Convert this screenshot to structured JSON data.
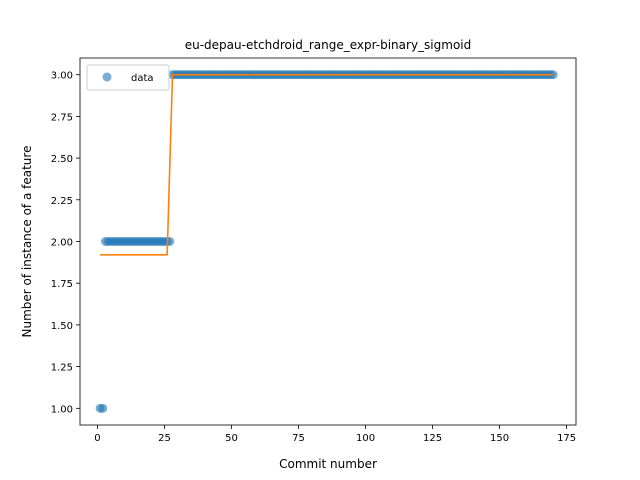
{
  "chart_data": {
    "type": "scatter",
    "title": "eu-depau-etchdroid_range_expr-binary_sigmoid",
    "xlabel": "Commit number",
    "ylabel": "Number of instance of a feature",
    "xlim": [
      -6.5,
      178.5
    ],
    "ylim": [
      0.9,
      3.1
    ],
    "xticks": [
      0,
      25,
      50,
      75,
      100,
      125,
      150,
      175
    ],
    "yticks": [
      1.0,
      1.25,
      1.5,
      1.75,
      2.0,
      2.25,
      2.5,
      2.75,
      3.0
    ],
    "ytick_labels": [
      "1.00",
      "1.25",
      "1.50",
      "1.75",
      "2.00",
      "2.25",
      "2.50",
      "2.75",
      "3.00"
    ],
    "legend": {
      "position": "top-left",
      "entries": [
        "data"
      ]
    },
    "colors": {
      "data": "#1f77b4",
      "fit": "#ff7f0e"
    },
    "series": [
      {
        "name": "data",
        "style": "markers",
        "segments": [
          {
            "x_start": 1,
            "x_end": 2,
            "y": 1.0
          },
          {
            "x_start": 3,
            "x_end": 27,
            "y": 2.0
          },
          {
            "x_start": 28,
            "x_end": 170,
            "y": 3.0
          }
        ]
      },
      {
        "style": "line",
        "points": [
          [
            1,
            1.92
          ],
          [
            26,
            1.92
          ],
          [
            28,
            3.0
          ],
          [
            170,
            3.0
          ]
        ]
      }
    ]
  }
}
